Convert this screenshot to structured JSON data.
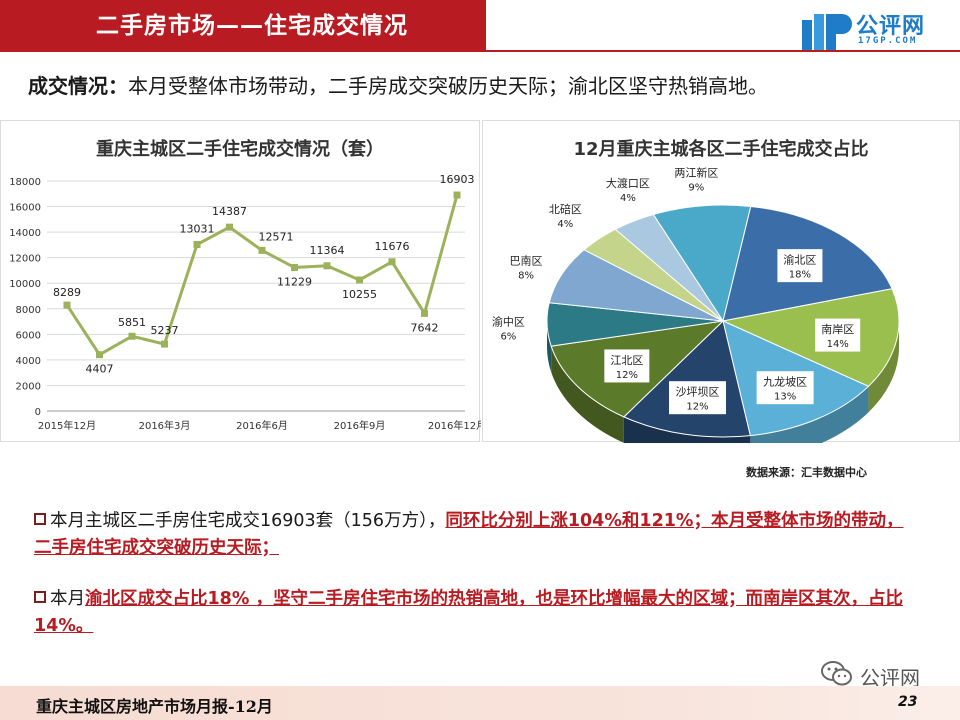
{
  "header": {
    "title": "二手房市场——住宅成交情况",
    "logo_text": "公评网",
    "logo_sub": "17GP.COM"
  },
  "headline": {
    "lead": "成交情况：",
    "text": "本月受整体市场带动，二手房成交突破历史天际；渝北区坚守热销高地。"
  },
  "chart_data": [
    {
      "type": "line",
      "title": "重庆主城区二手住宅成交情况（套）",
      "x": [
        "2015年12月",
        "2016年1月",
        "2016年2月",
        "2016年3月",
        "2016年4月",
        "2016年5月",
        "2016年6月",
        "2016年7月",
        "2016年8月",
        "2016年9月",
        "2016年10月",
        "2016年11月",
        "2016年12月"
      ],
      "x_tick_labels": [
        "2015年12月",
        "2016年3月",
        "2016年6月",
        "2016年9月",
        "2016年12月"
      ],
      "x_tick_indices": [
        0,
        3,
        6,
        9,
        12
      ],
      "values": [
        8289,
        4407,
        5851,
        5237,
        13031,
        14387,
        12571,
        11229,
        11364,
        10255,
        11676,
        7642,
        16903
      ],
      "data_labels": [
        "8289",
        "4407",
        "5851",
        "5237",
        "13031",
        "14387",
        "12571",
        "11229",
        "11364",
        "10255",
        "11676",
        "7642",
        "16903"
      ],
      "ylim": [
        0,
        18000
      ],
      "yticks": [
        0,
        2000,
        4000,
        6000,
        8000,
        10000,
        12000,
        14000,
        16000,
        18000
      ],
      "grid": true,
      "line_color": "#9bb25a"
    },
    {
      "type": "pie",
      "title": "12月重庆主城各区二手住宅成交占比",
      "slices": [
        {
          "label": "两江新区",
          "value": 9,
          "text": "9%",
          "color": "#4aa8c8"
        },
        {
          "label": "渝北区",
          "value": 18,
          "text": "18%",
          "color": "#3b6ea8"
        },
        {
          "label": "南岸区",
          "value": 14,
          "text": "14%",
          "color": "#9bbf4e"
        },
        {
          "label": "九龙坡区",
          "value": 13,
          "text": "13%",
          "color": "#5ab0d6"
        },
        {
          "label": "沙坪坝区",
          "value": 12,
          "text": "12%",
          "color": "#24446c"
        },
        {
          "label": "江北区",
          "value": 12,
          "text": "12%",
          "color": "#5b7a2a"
        },
        {
          "label": "渝中区",
          "value": 6,
          "text": "6%",
          "color": "#2c7a86"
        },
        {
          "label": "巴南区",
          "value": 8,
          "text": "8%",
          "color": "#7fa7d0"
        },
        {
          "label": "北碚区",
          "value": 4,
          "text": "4%",
          "color": "#c4d48a"
        },
        {
          "label": "大渡口区",
          "value": 4,
          "text": "4%",
          "color": "#aac8df"
        }
      ]
    }
  ],
  "source": "数据来源：汇丰数据中心",
  "bullets": [
    {
      "plain": "本月主城区二手房住宅成交16903套（156万方），",
      "highlight": "同环比分别上涨104%和121%；本月受整体市场的带动，二手房住宅成交突破历史天际；"
    },
    {
      "plain": "本月",
      "highlight": "渝北区成交占比18% ，坚守二手房住宅市场的热销高地，也是环比增幅最大的区域；而南岸区其次，占比14%。"
    }
  ],
  "footer": {
    "text": "重庆主城区房地产市场月报-12月",
    "page": "23",
    "wechat_name": "公评网"
  }
}
